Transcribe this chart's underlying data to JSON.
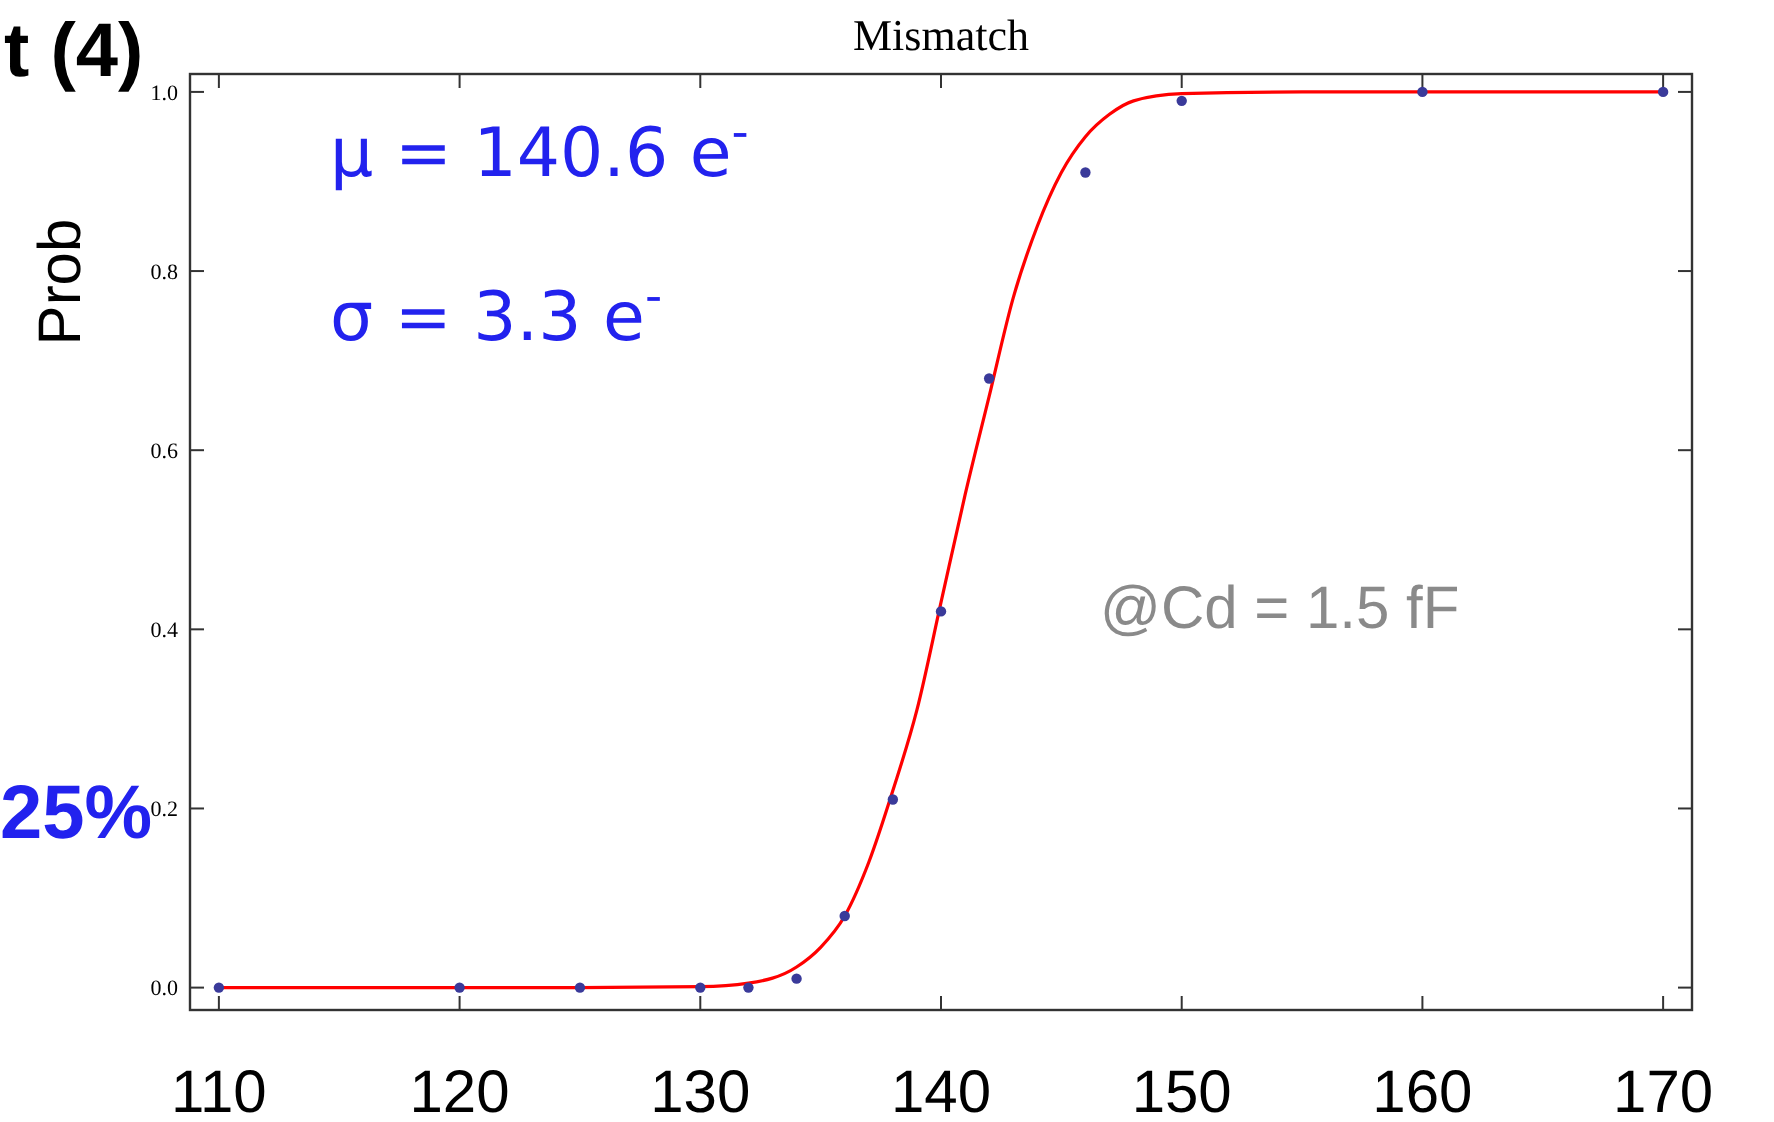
{
  "chart_data": {
    "type": "scatter",
    "title": "Mismatch",
    "ylabel": "Prob",
    "annotations": [
      "μ = 140.6 e$^{-}$",
      "σ = 3.3 e$^{-}$",
      "@Cd = 1.5 fF",
      "t (4)",
      "25%"
    ],
    "xlim": [
      108.8,
      171.2
    ],
    "xticks": [
      110,
      120,
      130,
      140,
      150,
      160,
      170
    ],
    "ylim": [
      -0.025,
      1.02
    ],
    "yticks": [
      {
        "value": 0,
        "label": "0.0"
      },
      {
        "value": 0.2,
        "label": "0.2"
      },
      {
        "value": 0.4,
        "label": "0.4"
      },
      {
        "value": 0.6,
        "label": "0.6"
      },
      {
        "value": 0.8,
        "label": "0.8"
      },
      {
        "value": 1,
        "label": "1.0"
      }
    ],
    "grid": false,
    "series": [
      {
        "type": "line",
        "color": "#ff0000",
        "marker": "none",
        "line_style": "solid",
        "x": [
          110,
          125,
          130,
          132,
          134,
          135,
          136,
          137,
          138,
          139,
          140,
          141,
          142,
          143,
          144,
          145,
          146,
          147,
          148,
          150,
          155,
          170
        ],
        "values": [
          0,
          0,
          0.001,
          0.005,
          0.023,
          0.045,
          0.08,
          0.14,
          0.22,
          0.31,
          0.43,
          0.55,
          0.66,
          0.77,
          0.85,
          0.91,
          0.95,
          0.975,
          0.99,
          0.998,
          1,
          1
        ]
      },
      {
        "color": "#3a3a9a",
        "marker": "circle",
        "x": [
          110,
          120,
          125,
          130,
          132,
          134,
          136,
          138,
          140,
          142,
          146,
          150,
          160,
          170
        ],
        "values": [
          0,
          0,
          0,
          0,
          0,
          0.01,
          0.08,
          0.21,
          0.42,
          0.68,
          0.91,
          0.99,
          1,
          1
        ]
      }
    ]
  }
}
